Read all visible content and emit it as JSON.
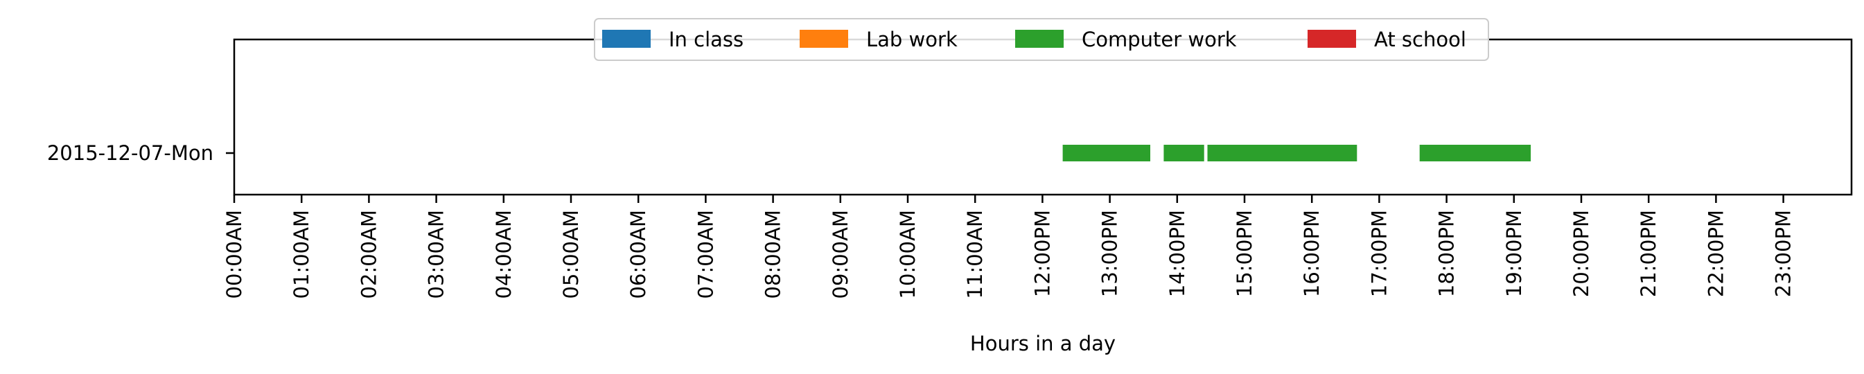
{
  "chart_data": {
    "type": "timeline",
    "title": "",
    "xlabel": "Hours in a day",
    "ylabel": "",
    "xlim": [
      0,
      24
    ],
    "grid": false,
    "legend_placement": "top-center",
    "x_ticks": [
      "00:00AM",
      "01:00AM",
      "02:00AM",
      "03:00AM",
      "04:00AM",
      "05:00AM",
      "06:00AM",
      "07:00AM",
      "08:00AM",
      "09:00AM",
      "10:00AM",
      "11:00AM",
      "12:00PM",
      "13:00PM",
      "14:00PM",
      "15:00PM",
      "16:00PM",
      "17:00PM",
      "18:00PM",
      "19:00PM",
      "20:00PM",
      "21:00PM",
      "22:00PM",
      "23:00PM"
    ],
    "categories": [
      "2015-12-07-Mon"
    ],
    "legend": [
      {
        "name": "In class",
        "color": "#1f77b4"
      },
      {
        "name": "Lab work",
        "color": "#ff7f0e"
      },
      {
        "name": "Computer work",
        "color": "#2ca02c"
      },
      {
        "name": "At school",
        "color": "#d62728"
      }
    ],
    "series": [
      {
        "name": "Computer work",
        "color": "#2ca02c",
        "category": "2015-12-07-Mon",
        "intervals": [
          {
            "start": 12.3,
            "end": 13.6
          },
          {
            "start": 13.8,
            "end": 14.4
          },
          {
            "start": 14.45,
            "end": 16.67
          },
          {
            "start": 17.6,
            "end": 19.25
          }
        ]
      }
    ]
  }
}
